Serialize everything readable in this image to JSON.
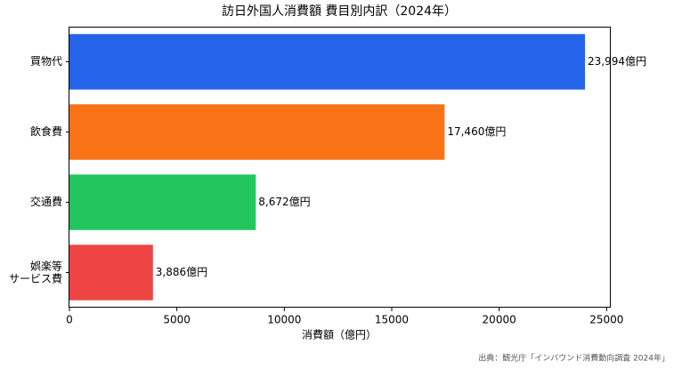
{
  "chart_data": {
    "type": "barh",
    "title": "訪日外国人消費額 費目別内訳（2024年）",
    "x_label": "消費額（億円）",
    "source": "出典：観光庁「インバウンド消費動向調査 2024年」",
    "categories": [
      "買物代",
      "飲食費",
      "交通費",
      "娯楽等\nサービス費"
    ],
    "values": [
      23994,
      17460,
      8672,
      3886
    ],
    "value_labels": [
      "23,994億円",
      "17,460億円",
      "8,672億円",
      "3,886億円"
    ],
    "colors": [
      "#2563eb",
      "#f97316",
      "#22c55e",
      "#ef4444"
    ],
    "xlim": [
      0,
      25194
    ],
    "xticks": [
      0,
      5000,
      10000,
      15000,
      20000,
      25000
    ]
  }
}
